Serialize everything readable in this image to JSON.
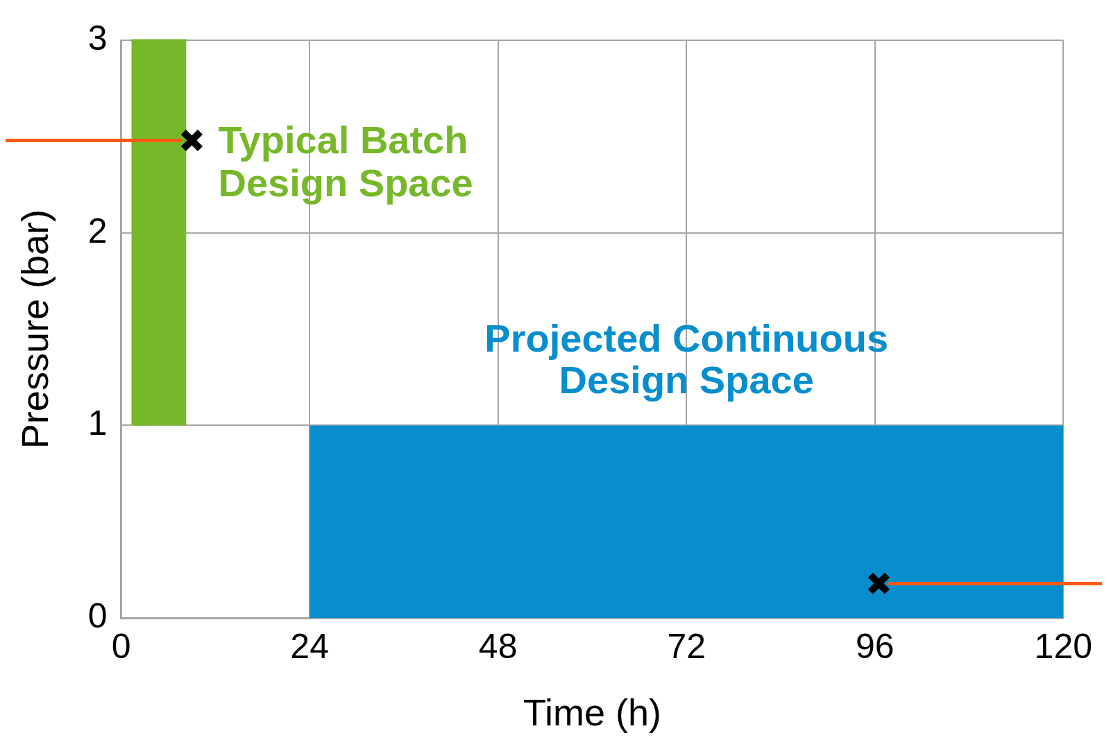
{
  "chart_data": {
    "type": "area",
    "xlabel": "Time (h)",
    "ylabel": "Pressure (bar)",
    "xlim": [
      0,
      120
    ],
    "xticks": [
      0,
      24,
      48,
      72,
      96,
      120
    ],
    "ylim": [
      0,
      3
    ],
    "yticks": [
      0,
      1,
      2,
      3
    ],
    "grid": true,
    "legend": false,
    "series": [
      {
        "name": "Typical Batch Design Space",
        "type": "line",
        "color": "#76b82a",
        "x": [
          1.3,
          8.3
        ],
        "values": [
          3,
          3
        ],
        "lower": [
          1,
          1
        ],
        "upper": [
          3,
          3
        ]
      },
      {
        "name": "Projected Continuous Design Space",
        "color": "#088ecd",
        "x": [
          24,
          120
        ],
        "values": [
          1,
          1
        ]
      },
      {
        "type": "scatter",
        "color": "#000000",
        "marker": "cross",
        "x": [
          9,
          96.5
        ],
        "values": [
          2.48,
          0.18
        ]
      }
    ]
  }
}
